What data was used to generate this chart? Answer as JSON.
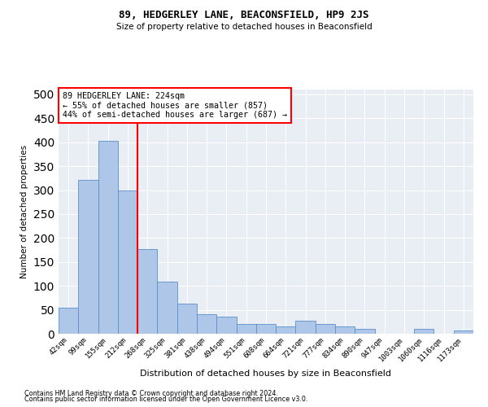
{
  "title": "89, HEDGERLEY LANE, BEACONSFIELD, HP9 2JS",
  "subtitle": "Size of property relative to detached houses in Beaconsfield",
  "xlabel": "Distribution of detached houses by size in Beaconsfield",
  "ylabel": "Number of detached properties",
  "bar_labels": [
    "42sqm",
    "99sqm",
    "155sqm",
    "212sqm",
    "268sqm",
    "325sqm",
    "381sqm",
    "438sqm",
    "494sqm",
    "551sqm",
    "608sqm",
    "664sqm",
    "721sqm",
    "777sqm",
    "834sqm",
    "890sqm",
    "947sqm",
    "1003sqm",
    "1060sqm",
    "1116sqm",
    "1173sqm"
  ],
  "bar_values": [
    54,
    322,
    403,
    300,
    176,
    108,
    63,
    40,
    36,
    20,
    20,
    15,
    28,
    20,
    15,
    10,
    0,
    0,
    10,
    0,
    7
  ],
  "bar_color": "#aec6e8",
  "bar_edge_color": "#5b8fcc",
  "background_color": "#e8eef4",
  "grid_color": "#ffffff",
  "vline_x": 3.5,
  "vline_color": "red",
  "vline_lw": 1.5,
  "annotation_line1": "89 HEDGERLEY LANE: 224sqm",
  "annotation_line2": "← 55% of detached houses are smaller (857)",
  "annotation_line3": "44% of semi-detached houses are larger (687) →",
  "annotation_box_color": "red",
  "annotation_box_bg": "white",
  "ylim": [
    0,
    510
  ],
  "yticks": [
    0,
    50,
    100,
    150,
    200,
    250,
    300,
    350,
    400,
    450,
    500
  ],
  "footer1": "Contains HM Land Registry data © Crown copyright and database right 2024.",
  "footer2": "Contains public sector information licensed under the Open Government Licence v3.0."
}
